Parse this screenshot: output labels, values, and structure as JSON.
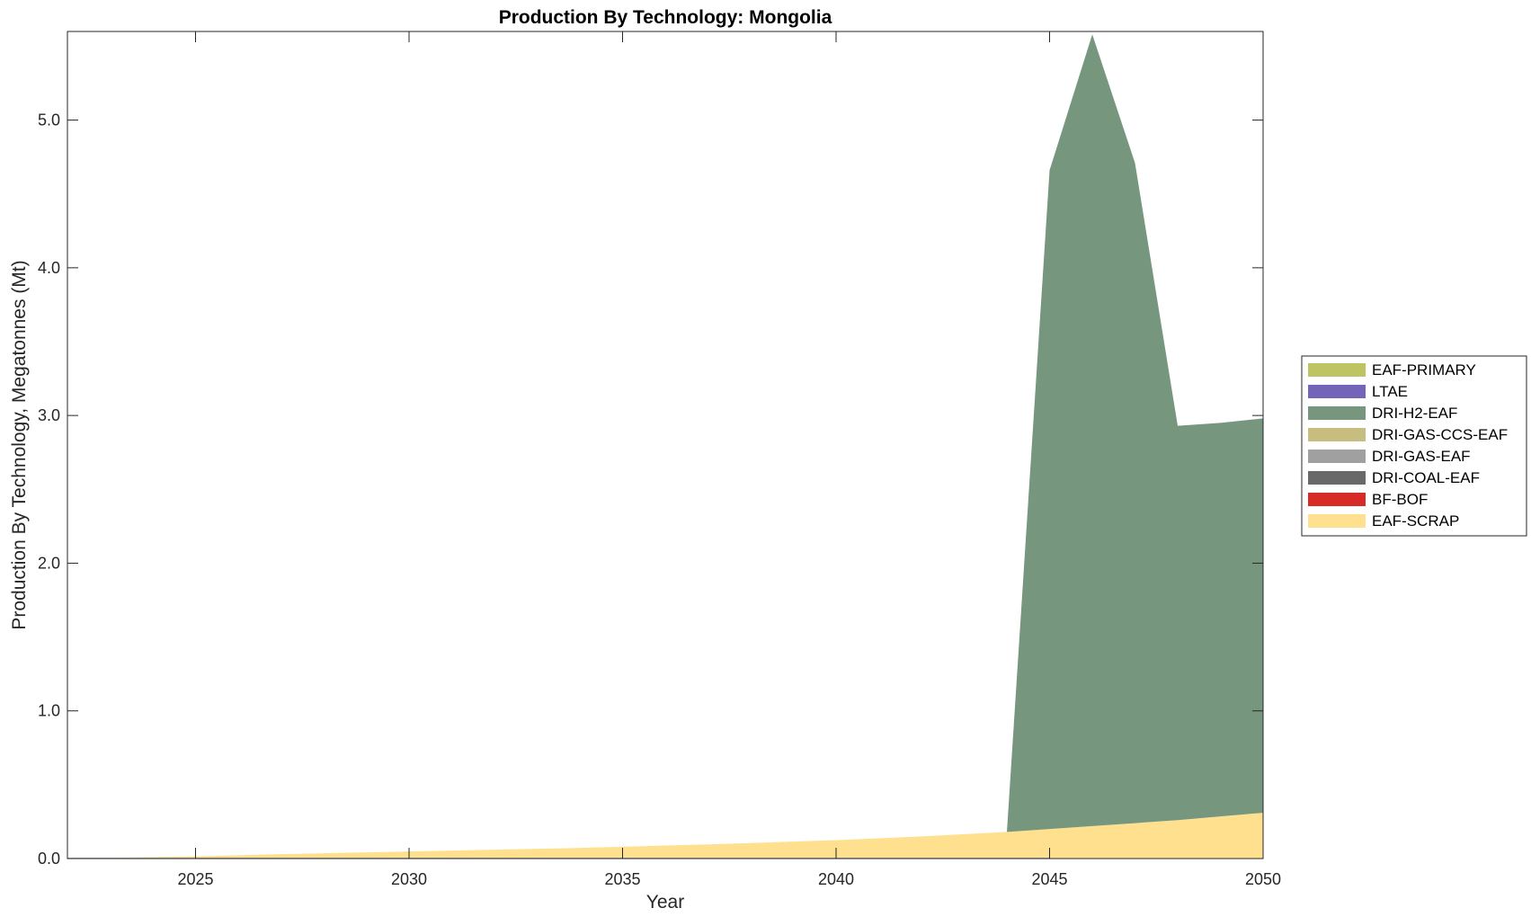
{
  "chart_data": {
    "type": "area",
    "stacked": true,
    "title": "Production By Technology: Mongolia",
    "xlabel": "Year",
    "ylabel": "Production By Technology, Megatonnes (Mt)",
    "xlim": [
      2022,
      2050
    ],
    "ylim": [
      0,
      5.6
    ],
    "x_ticks": [
      2025,
      2030,
      2035,
      2040,
      2045,
      2050
    ],
    "y_ticks": [
      0,
      1,
      2,
      3,
      4,
      5
    ],
    "y_tick_labels": [
      "0.0",
      "1.0",
      "2.0",
      "3.0",
      "4.0",
      "5.0"
    ],
    "x": [
      2022,
      2023,
      2024,
      2025,
      2026,
      2027,
      2028,
      2029,
      2030,
      2031,
      2032,
      2033,
      2034,
      2035,
      2036,
      2037,
      2038,
      2039,
      2040,
      2041,
      2042,
      2043,
      2044,
      2045,
      2046,
      2047,
      2048,
      2049,
      2050
    ],
    "legend_position": "right",
    "series": [
      {
        "name": "EAF-SCRAP",
        "color": "#FFE08E",
        "values": [
          0.0,
          0.005,
          0.01,
          0.015,
          0.022,
          0.03,
          0.036,
          0.042,
          0.048,
          0.054,
          0.06,
          0.066,
          0.072,
          0.08,
          0.088,
          0.096,
          0.105,
          0.115,
          0.125,
          0.137,
          0.15,
          0.165,
          0.18,
          0.2,
          0.22,
          0.24,
          0.26,
          0.285,
          0.31
        ]
      },
      {
        "name": "BF-BOF",
        "color": "#D62B26",
        "values": [
          0,
          0,
          0,
          0,
          0,
          0,
          0,
          0,
          0,
          0,
          0,
          0,
          0,
          0,
          0,
          0,
          0,
          0,
          0,
          0,
          0,
          0,
          0,
          0,
          0,
          0,
          0,
          0,
          0
        ]
      },
      {
        "name": "DRI-COAL-EAF",
        "color": "#696969",
        "values": [
          0,
          0,
          0,
          0,
          0,
          0,
          0,
          0,
          0,
          0,
          0,
          0,
          0,
          0,
          0,
          0,
          0,
          0,
          0,
          0,
          0,
          0,
          0,
          0,
          0,
          0,
          0,
          0,
          0
        ]
      },
      {
        "name": "DRI-GAS-EAF",
        "color": "#A0A0A0",
        "values": [
          0,
          0,
          0,
          0,
          0,
          0,
          0,
          0,
          0,
          0,
          0,
          0,
          0,
          0,
          0,
          0,
          0,
          0,
          0,
          0,
          0,
          0,
          0,
          0,
          0,
          0,
          0,
          0,
          0
        ]
      },
      {
        "name": "DRI-GAS-CCS-EAF",
        "color": "#C6BD7E",
        "values": [
          0,
          0,
          0,
          0,
          0,
          0,
          0,
          0,
          0,
          0,
          0,
          0,
          0,
          0,
          0,
          0,
          0,
          0,
          0,
          0,
          0,
          0,
          0,
          0,
          0,
          0,
          0,
          0,
          0
        ]
      },
      {
        "name": "DRI-H2-EAF",
        "color": "#76977D",
        "values": [
          0,
          0,
          0,
          0,
          0,
          0,
          0,
          0,
          0,
          0,
          0,
          0,
          0,
          0,
          0,
          0,
          0,
          0,
          0,
          0,
          0,
          0,
          0,
          4.46,
          5.36,
          4.47,
          2.67,
          2.665,
          2.67
        ]
      },
      {
        "name": "LTAE",
        "color": "#7565B8",
        "values": [
          0,
          0,
          0,
          0,
          0,
          0,
          0,
          0,
          0,
          0,
          0,
          0,
          0,
          0,
          0,
          0,
          0,
          0,
          0,
          0,
          0,
          0,
          0,
          0,
          0,
          0,
          0,
          0,
          0
        ]
      },
      {
        "name": "EAF-PRIMARY",
        "color": "#BFC463",
        "values": [
          0,
          0,
          0,
          0,
          0,
          0,
          0,
          0,
          0,
          0,
          0,
          0,
          0,
          0,
          0,
          0,
          0,
          0,
          0,
          0,
          0,
          0,
          0,
          0,
          0,
          0,
          0,
          0,
          0
        ]
      }
    ],
    "legend_order": [
      "EAF-PRIMARY",
      "LTAE",
      "DRI-H2-EAF",
      "DRI-GAS-CCS-EAF",
      "DRI-GAS-EAF",
      "DRI-COAL-EAF",
      "BF-BOF",
      "EAF-SCRAP"
    ]
  }
}
